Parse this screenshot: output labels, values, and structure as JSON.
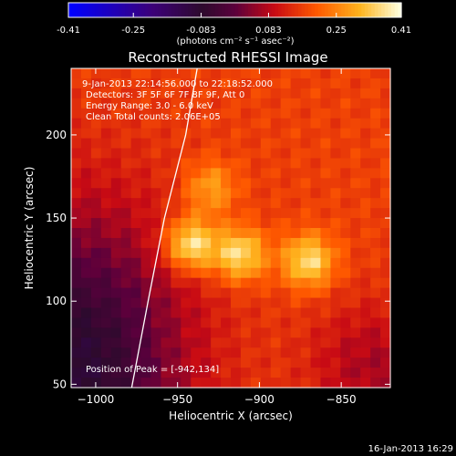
{
  "colorbar": {
    "ticks": [
      "-0.41",
      "-0.25",
      "-0.083",
      "0.083",
      "0.25",
      "0.41"
    ],
    "tick_values": [
      -0.41,
      -0.25,
      -0.083,
      0.083,
      0.25,
      0.41
    ],
    "unit_label": "(photons cm⁻² s⁻¹ asec⁻²)",
    "range": [
      -0.41,
      0.41
    ]
  },
  "chart_data": {
    "type": "heatmap",
    "title": "Reconstructed RHESSI Image",
    "xlabel": "Heliocentric X (arcsec)",
    "ylabel": "Heliocentric Y (arcsec)",
    "xlim": [
      -1015,
      -820
    ],
    "ylim": [
      48,
      240
    ],
    "x_ticks": [
      -1000,
      -950,
      -900,
      -850
    ],
    "x_tick_labels": [
      "−1000",
      "−950",
      "−900",
      "−850"
    ],
    "y_ticks": [
      50,
      100,
      150,
      200
    ],
    "y_tick_labels": [
      "50",
      "100",
      "150",
      "200"
    ],
    "annotations": [
      "9-Jan-2013 22:14:56.000 to 22:18:52.000",
      "Detectors: 3F 5F 6F 7F 8F 9F, Att 0",
      "Energy Range: 3.0 - 6.0 keV",
      "Clean    Total counts: 2.06E+05"
    ],
    "peak_label": "Position of Peak = [-942,134]",
    "peak": [
      -942,
      134
    ],
    "sources": [
      {
        "x": -942,
        "y": 134,
        "peak": 0.41
      },
      {
        "x": -912,
        "y": 128,
        "peak": 0.38
      },
      {
        "x": -870,
        "y": 124,
        "peak": 0.37
      },
      {
        "x": -930,
        "y": 168,
        "peak": 0.3
      }
    ],
    "limb_curve": [
      {
        "x": -978,
        "y": 48
      },
      {
        "x": -968,
        "y": 100
      },
      {
        "x": -958,
        "y": 150
      },
      {
        "x": -945,
        "y": 200
      },
      {
        "x": -938,
        "y": 240
      }
    ]
  },
  "footer": {
    "timestamp": "16-Jan-2013 16:29"
  }
}
